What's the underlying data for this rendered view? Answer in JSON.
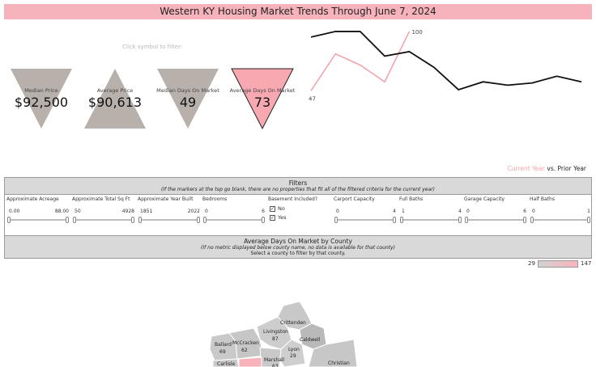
{
  "title": "Western KY Housing Market Trends Through June 7, 2024",
  "hint": "Click symbol to filter:",
  "kpis": [
    {
      "label": "Median Price",
      "value": "$92,500",
      "shape": "down-triangle",
      "color": "#b8b0ab",
      "selected": false
    },
    {
      "label": "Average Price",
      "value": "$90,613",
      "shape": "up-triangle",
      "color": "#b8b0ab",
      "selected": false
    },
    {
      "label": "Median Days On Market",
      "value": "49",
      "shape": "down-triangle",
      "color": "#b8b0ab",
      "selected": false
    },
    {
      "label": "Average Days On Market",
      "value": "73",
      "shape": "down-triangle",
      "color": "#f7a8b0",
      "selected": true
    }
  ],
  "chart_data": {
    "type": "line",
    "series": [
      {
        "name": "Current Year",
        "color": "#f4a3ac",
        "values": [
          47,
          80,
          70,
          55,
          100
        ]
      },
      {
        "name": "Prior Year",
        "color": "#111111",
        "values": [
          95,
          100,
          100,
          78,
          82,
          68,
          48,
          55,
          52,
          54,
          60,
          55
        ]
      }
    ],
    "data_labels": {
      "first": "47",
      "last": "100"
    },
    "ylim": [
      40,
      105
    ]
  },
  "legend": {
    "current": "Current Year",
    "vs": "vs.",
    "prior": "Prior Year"
  },
  "filters_panel": {
    "title": "Filters",
    "subtitle": "(If the markers at the top go blank, there are no properties that fit all of the filtered criteria for the current year)"
  },
  "filters": [
    {
      "label": "Approximate Acreage",
      "min": "0.00",
      "max": "88.00"
    },
    {
      "label": "Approximate Total Sq Ft",
      "min": "50",
      "max": "4928"
    },
    {
      "label": "Approximate Year Built",
      "min": "1851",
      "max": "2022"
    },
    {
      "label": "Bedrooms",
      "min": "0",
      "max": "6"
    },
    {
      "label": "Carport Capacity",
      "min": "0",
      "max": "4"
    },
    {
      "label": "Full Baths",
      "min": "1",
      "max": "4"
    },
    {
      "label": "Garage Capacity",
      "min": "0",
      "max": "6"
    },
    {
      "label": "Half Baths",
      "min": "0",
      "max": "1"
    }
  ],
  "basement": {
    "label": "Basement Included?",
    "options": [
      "No",
      "Yes"
    ]
  },
  "map_panel": {
    "title": "Average Days On Market by County",
    "subtitle": "(If no metric displayed below county name, no data is available for that county)",
    "instruction": "Select a county to filter by that county."
  },
  "color_scale": {
    "min": "29",
    "max": "147"
  },
  "counties": [
    {
      "name": "Crittenden",
      "value": ""
    },
    {
      "name": "Livingston",
      "value": "87"
    },
    {
      "name": "Caldwell",
      "value": ""
    },
    {
      "name": "Ballard",
      "value": "69"
    },
    {
      "name": "McCracken",
      "value": "62"
    },
    {
      "name": "Lyon",
      "value": "29"
    },
    {
      "name": "Marshall",
      "value": "63"
    },
    {
      "name": "Carlisle",
      "value": ""
    },
    {
      "name": "Christian",
      "value": ""
    }
  ]
}
